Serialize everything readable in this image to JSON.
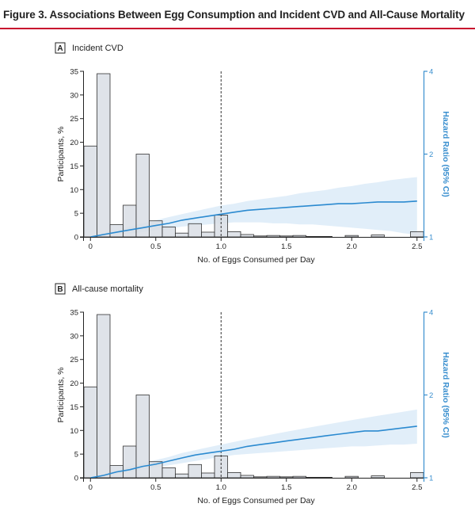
{
  "figure": {
    "title": "Figure 3. Associations Between Egg Consumption and Incident CVD and All-Cause Mortality"
  },
  "colors": {
    "accent_rule": "#c8102e",
    "bar_fill": "#d9dee5",
    "bar_stroke": "#333333",
    "hr_line": "#2b8ad0",
    "ci_band": "#dcebf8",
    "right_axis": "#3a8fcf"
  },
  "chart_data": [
    {
      "type": "bar+line",
      "panel_letter": "A",
      "panel_label": "Incident CVD",
      "xlabel": "No. of Eggs Consumed per Day",
      "ylabel": "Participants, %",
      "y2label": "Hazard Ratio (95% CI)",
      "xlim": [
        -0.05,
        2.55
      ],
      "ylim": [
        0,
        35
      ],
      "y2lim": [
        1,
        4
      ],
      "x_ticks": [
        0,
        0.5,
        1.0,
        1.5,
        2.0,
        2.5
      ],
      "x_tick_labels": [
        "0",
        "0.5",
        "1.0",
        "1.5",
        "2.0",
        "2.5"
      ],
      "y_ticks": [
        0,
        5,
        10,
        15,
        20,
        25,
        30,
        35
      ],
      "y_tick_labels": [
        "0",
        "5",
        "10",
        "15",
        "20",
        "25",
        "30",
        "35"
      ],
      "y2_ticks": [
        1,
        2,
        4
      ],
      "y2_tick_labels": [
        "1",
        "2",
        "4"
      ],
      "reference_line_x": 1.0,
      "bar_width": 0.1,
      "bars": [
        {
          "x": 0.0,
          "value": 19.2
        },
        {
          "x": 0.1,
          "value": 34.5
        },
        {
          "x": 0.2,
          "value": 2.6
        },
        {
          "x": 0.3,
          "value": 6.7
        },
        {
          "x": 0.4,
          "value": 17.5
        },
        {
          "x": 0.5,
          "value": 3.4
        },
        {
          "x": 0.6,
          "value": 2.1
        },
        {
          "x": 0.7,
          "value": 0.8
        },
        {
          "x": 0.8,
          "value": 2.8
        },
        {
          "x": 0.9,
          "value": 1.0
        },
        {
          "x": 1.0,
          "value": 4.6
        },
        {
          "x": 1.1,
          "value": 1.1
        },
        {
          "x": 1.2,
          "value": 0.5
        },
        {
          "x": 1.3,
          "value": 0.2
        },
        {
          "x": 1.4,
          "value": 0.3
        },
        {
          "x": 1.5,
          "value": 0.2
        },
        {
          "x": 1.6,
          "value": 0.3
        },
        {
          "x": 1.7,
          "value": 0.1
        },
        {
          "x": 1.8,
          "value": 0.1
        },
        {
          "x": 2.0,
          "value": 0.3
        },
        {
          "x": 2.2,
          "value": 0.4
        },
        {
          "x": 2.5,
          "value": 1.1
        }
      ],
      "hazard_ratio": {
        "x": [
          0.0,
          0.1,
          0.2,
          0.3,
          0.4,
          0.5,
          0.6,
          0.7,
          0.8,
          0.9,
          1.0,
          1.1,
          1.2,
          1.3,
          1.4,
          1.5,
          1.6,
          1.7,
          1.8,
          1.9,
          2.0,
          2.1,
          2.2,
          2.3,
          2.4,
          2.5
        ],
        "hr": [
          1.0,
          1.02,
          1.04,
          1.06,
          1.08,
          1.1,
          1.12,
          1.15,
          1.17,
          1.19,
          1.21,
          1.23,
          1.25,
          1.26,
          1.27,
          1.28,
          1.29,
          1.3,
          1.31,
          1.32,
          1.32,
          1.33,
          1.34,
          1.34,
          1.34,
          1.35
        ],
        "lower": [
          1.0,
          1.01,
          1.02,
          1.03,
          1.04,
          1.06,
          1.07,
          1.09,
          1.1,
          1.11,
          1.12,
          1.13,
          1.13,
          1.13,
          1.12,
          1.12,
          1.11,
          1.11,
          1.1,
          1.09,
          1.08,
          1.07,
          1.06,
          1.05,
          1.03,
          1.02
        ],
        "upper": [
          1.0,
          1.03,
          1.06,
          1.09,
          1.12,
          1.15,
          1.18,
          1.21,
          1.24,
          1.27,
          1.3,
          1.32,
          1.35,
          1.37,
          1.39,
          1.41,
          1.44,
          1.46,
          1.48,
          1.51,
          1.53,
          1.56,
          1.58,
          1.61,
          1.63,
          1.65
        ]
      }
    },
    {
      "type": "bar+line",
      "panel_letter": "B",
      "panel_label": "All-cause mortality",
      "xlabel": "No. of Eggs Consumed per Day",
      "ylabel": "Participants, %",
      "y2label": "Hazard Ratio (95% CI)",
      "xlim": [
        -0.05,
        2.55
      ],
      "ylim": [
        0,
        35
      ],
      "y2lim": [
        1,
        4
      ],
      "x_ticks": [
        0,
        0.5,
        1.0,
        1.5,
        2.0,
        2.5
      ],
      "x_tick_labels": [
        "0",
        "0.5",
        "1.0",
        "1.5",
        "2.0",
        "2.5"
      ],
      "y_ticks": [
        0,
        5,
        10,
        15,
        20,
        25,
        30,
        35
      ],
      "y_tick_labels": [
        "0",
        "5",
        "10",
        "15",
        "20",
        "25",
        "30",
        "35"
      ],
      "y2_ticks": [
        1,
        2,
        4
      ],
      "y2_tick_labels": [
        "1",
        "2",
        "4"
      ],
      "reference_line_x": 1.0,
      "bar_width": 0.1,
      "bars": [
        {
          "x": 0.0,
          "value": 19.2
        },
        {
          "x": 0.1,
          "value": 34.5
        },
        {
          "x": 0.2,
          "value": 2.6
        },
        {
          "x": 0.3,
          "value": 6.7
        },
        {
          "x": 0.4,
          "value": 17.5
        },
        {
          "x": 0.5,
          "value": 3.4
        },
        {
          "x": 0.6,
          "value": 2.1
        },
        {
          "x": 0.7,
          "value": 0.8
        },
        {
          "x": 0.8,
          "value": 2.8
        },
        {
          "x": 0.9,
          "value": 1.0
        },
        {
          "x": 1.0,
          "value": 4.6
        },
        {
          "x": 1.1,
          "value": 1.1
        },
        {
          "x": 1.2,
          "value": 0.5
        },
        {
          "x": 1.3,
          "value": 0.2
        },
        {
          "x": 1.4,
          "value": 0.3
        },
        {
          "x": 1.5,
          "value": 0.2
        },
        {
          "x": 1.6,
          "value": 0.3
        },
        {
          "x": 1.7,
          "value": 0.1
        },
        {
          "x": 1.8,
          "value": 0.1
        },
        {
          "x": 2.0,
          "value": 0.3
        },
        {
          "x": 2.2,
          "value": 0.4
        },
        {
          "x": 2.5,
          "value": 1.1
        }
      ],
      "hazard_ratio": {
        "x": [
          0.0,
          0.1,
          0.2,
          0.3,
          0.4,
          0.5,
          0.6,
          0.7,
          0.8,
          0.9,
          1.0,
          1.1,
          1.2,
          1.3,
          1.4,
          1.5,
          1.6,
          1.7,
          1.8,
          1.9,
          2.0,
          2.1,
          2.2,
          2.3,
          2.4,
          2.5
        ],
        "hr": [
          1.0,
          1.02,
          1.05,
          1.07,
          1.1,
          1.12,
          1.15,
          1.18,
          1.21,
          1.23,
          1.25,
          1.27,
          1.3,
          1.32,
          1.34,
          1.36,
          1.38,
          1.4,
          1.42,
          1.44,
          1.46,
          1.48,
          1.48,
          1.5,
          1.52,
          1.54
        ],
        "lower": [
          1.0,
          1.01,
          1.03,
          1.05,
          1.07,
          1.09,
          1.11,
          1.13,
          1.15,
          1.17,
          1.19,
          1.21,
          1.22,
          1.23,
          1.24,
          1.25,
          1.26,
          1.27,
          1.28,
          1.29,
          1.3,
          1.3,
          1.31,
          1.32,
          1.32,
          1.33
        ],
        "upper": [
          1.0,
          1.03,
          1.07,
          1.1,
          1.13,
          1.16,
          1.19,
          1.23,
          1.26,
          1.29,
          1.32,
          1.35,
          1.38,
          1.41,
          1.44,
          1.47,
          1.5,
          1.53,
          1.56,
          1.59,
          1.62,
          1.65,
          1.68,
          1.71,
          1.74,
          1.77
        ]
      }
    }
  ]
}
